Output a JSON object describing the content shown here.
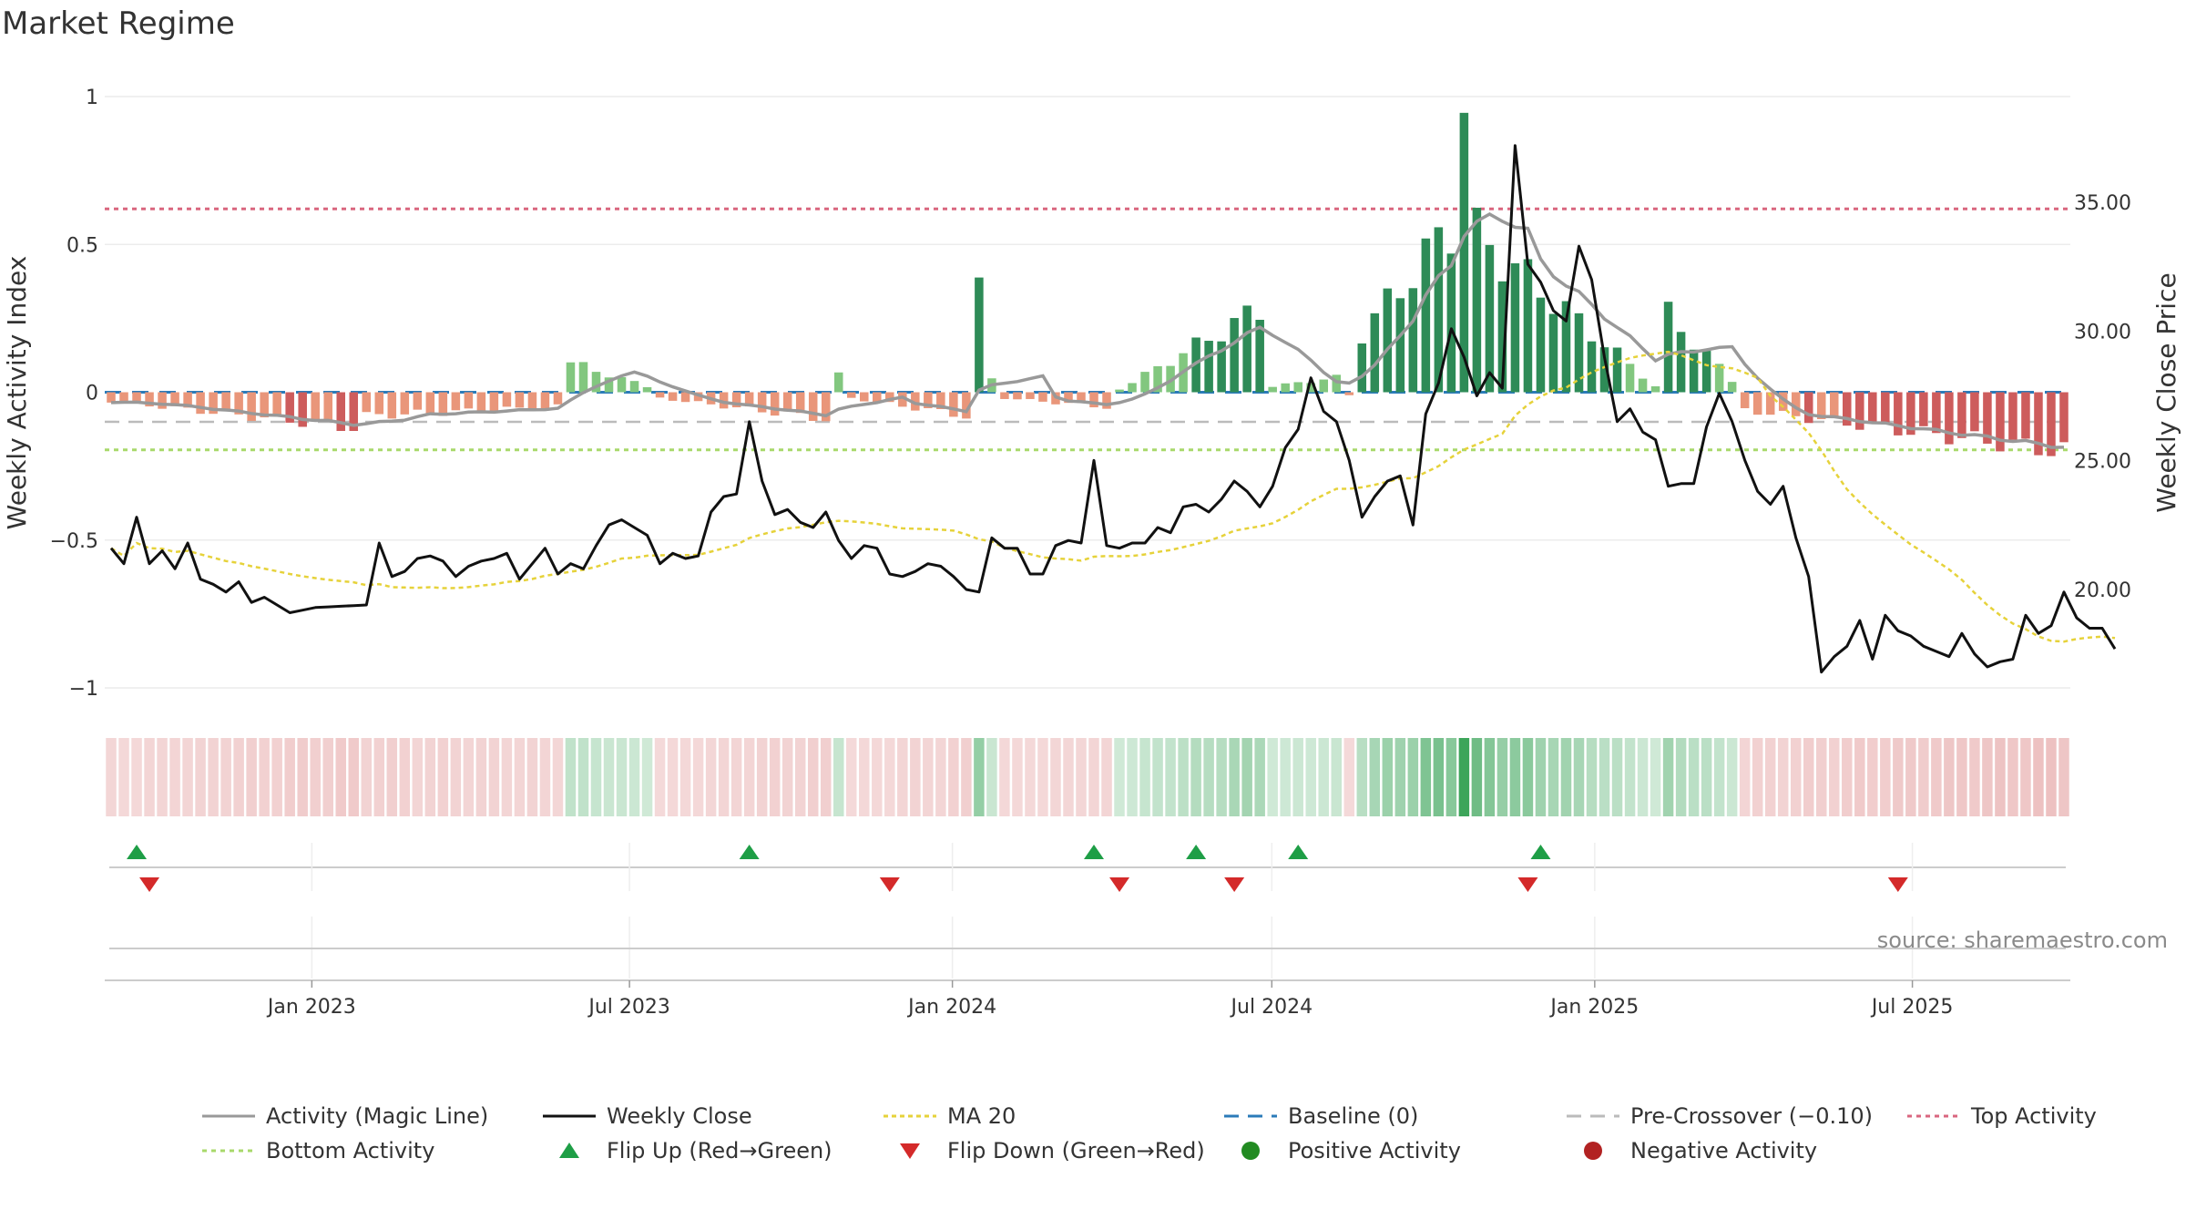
{
  "page": {
    "title": "Market Regime"
  },
  "chart_data": {
    "type": "bar",
    "title": "Market Regime",
    "left_axis": {
      "label": "Weekly Activity Index",
      "ylim": [
        -1.1,
        1.1
      ],
      "ticks": [
        1,
        0.5,
        0,
        -0.5,
        -1
      ],
      "tick_labels": [
        "1",
        "0.5",
        "0",
        "−0.5",
        "−1"
      ]
    },
    "right_axis": {
      "label": "Weekly Close Price",
      "ylim": [
        16.0,
        37.2
      ],
      "ticks": [
        35,
        30,
        25,
        20
      ],
      "tick_labels": [
        "35.00",
        "30.00",
        "25.00",
        "20.00"
      ]
    },
    "x_axis": {
      "start": "2022-09-05",
      "end": "2025-09-29",
      "ticks": [
        {
          "date": "2023-01-01",
          "label": "Jan 2023"
        },
        {
          "date": "2023-07-01",
          "label": "Jul 2023"
        },
        {
          "date": "2024-01-01",
          "label": "Jan 2024"
        },
        {
          "date": "2024-07-01",
          "label": "Jul 2024"
        },
        {
          "date": "2025-01-01",
          "label": "Jan 2025"
        },
        {
          "date": "2025-07-01",
          "label": "Jul 2025"
        }
      ]
    },
    "reference_lines": {
      "baseline": 0,
      "pre_crossover": -0.1,
      "top_activity": 0.62,
      "bottom_activity": -0.195
    },
    "activity_segments": [
      {
        "weeks": 20,
        "start": -0.03,
        "end": -0.12
      },
      {
        "weeks": 16,
        "start": -0.08,
        "end": -0.05
      },
      {
        "weeks": 7,
        "start": 0.1,
        "end": 0.02
      },
      {
        "weeks": 14,
        "start": -0.02,
        "end": -0.09
      },
      {
        "weeks": 1,
        "start": 0.08,
        "end": 0.08
      },
      {
        "weeks": 10,
        "start": -0.02,
        "end": -0.08
      },
      {
        "weeks": 2,
        "start": 0.46,
        "end": 0.05
      },
      {
        "weeks": 9,
        "start": -0.02,
        "end": -0.05
      },
      {
        "weeks": 12,
        "start": 0.01,
        "end": 0.28
      },
      {
        "weeks": 6,
        "start": 0.02,
        "end": 0.05
      },
      {
        "weeks": 1,
        "start": -0.01,
        "end": -0.01
      },
      {
        "weeks": 8,
        "start": 0.2,
        "end": 0.56
      },
      {
        "weeks": 1,
        "start": 1.0,
        "end": 1.0
      },
      {
        "weeks": 15,
        "start": 0.53,
        "end": 0.02
      },
      {
        "weeks": 6,
        "start": 0.26,
        "end": 0.04
      },
      {
        "weeks": 26,
        "start": -0.06,
        "end": -0.2
      }
    ],
    "series": [
      {
        "name": "Activity (Magic Line)",
        "color": "#999999",
        "values_source": "smoothed activity index"
      },
      {
        "name": "Weekly Close",
        "color": "#111111",
        "anchors": [
          [
            0,
            21.6
          ],
          [
            1,
            21.0
          ],
          [
            2,
            22.8
          ],
          [
            3,
            21.0
          ],
          [
            4,
            21.5
          ],
          [
            5,
            20.8
          ],
          [
            6,
            21.8
          ],
          [
            7,
            20.4
          ],
          [
            8,
            20.2
          ],
          [
            9,
            19.9
          ],
          [
            10,
            20.3
          ],
          [
            11,
            19.5
          ],
          [
            12,
            19.7
          ],
          [
            13,
            19.4
          ],
          [
            14,
            19.1
          ],
          [
            16,
            19.3
          ],
          [
            20,
            19.4
          ],
          [
            21,
            21.8
          ],
          [
            22,
            20.5
          ],
          [
            23,
            20.7
          ],
          [
            24,
            21.2
          ],
          [
            25,
            21.3
          ],
          [
            26,
            21.1
          ],
          [
            27,
            20.5
          ],
          [
            28,
            20.9
          ],
          [
            29,
            21.1
          ],
          [
            30,
            21.2
          ],
          [
            31,
            21.4
          ],
          [
            32,
            20.4
          ],
          [
            33,
            21.0
          ],
          [
            34,
            21.6
          ],
          [
            35,
            20.6
          ],
          [
            36,
            21.0
          ],
          [
            37,
            20.8
          ],
          [
            38,
            21.7
          ],
          [
            39,
            22.5
          ],
          [
            40,
            22.7
          ],
          [
            41,
            22.4
          ],
          [
            42,
            22.1
          ],
          [
            43,
            21.0
          ],
          [
            44,
            21.4
          ],
          [
            45,
            21.2
          ],
          [
            46,
            21.3
          ],
          [
            47,
            23.0
          ],
          [
            48,
            23.6
          ],
          [
            49,
            23.7
          ],
          [
            50,
            26.5
          ],
          [
            51,
            24.2
          ],
          [
            52,
            22.9
          ],
          [
            53,
            23.1
          ],
          [
            54,
            22.6
          ],
          [
            55,
            22.4
          ],
          [
            56,
            23.0
          ],
          [
            57,
            21.9
          ],
          [
            58,
            21.2
          ],
          [
            59,
            21.7
          ],
          [
            60,
            21.6
          ],
          [
            61,
            20.6
          ],
          [
            62,
            20.5
          ],
          [
            63,
            20.7
          ],
          [
            64,
            21.0
          ],
          [
            65,
            20.9
          ],
          [
            66,
            20.5
          ],
          [
            67,
            20.0
          ],
          [
            68,
            19.9
          ],
          [
            69,
            22.0
          ],
          [
            70,
            21.6
          ],
          [
            71,
            21.6
          ],
          [
            72,
            20.6
          ],
          [
            73,
            20.6
          ],
          [
            74,
            21.7
          ],
          [
            75,
            21.9
          ],
          [
            76,
            21.8
          ],
          [
            77,
            25.0
          ],
          [
            78,
            21.7
          ],
          [
            79,
            21.6
          ],
          [
            80,
            21.8
          ],
          [
            81,
            21.8
          ],
          [
            82,
            22.4
          ],
          [
            83,
            22.2
          ],
          [
            84,
            23.2
          ],
          [
            85,
            23.3
          ],
          [
            86,
            23.0
          ],
          [
            87,
            23.5
          ],
          [
            88,
            24.2
          ],
          [
            89,
            23.8
          ],
          [
            90,
            23.2
          ],
          [
            91,
            24.0
          ],
          [
            92,
            25.5
          ],
          [
            93,
            26.2
          ],
          [
            94,
            28.2
          ],
          [
            95,
            26.9
          ],
          [
            96,
            26.5
          ],
          [
            97,
            25.0
          ],
          [
            98,
            22.8
          ],
          [
            99,
            23.6
          ],
          [
            100,
            24.2
          ],
          [
            101,
            24.4
          ],
          [
            102,
            22.5
          ],
          [
            103,
            26.8
          ],
          [
            104,
            28.0
          ],
          [
            105,
            30.1
          ],
          [
            106,
            29.0
          ],
          [
            107,
            27.5
          ],
          [
            108,
            28.4
          ],
          [
            109,
            27.8
          ],
          [
            110,
            37.2
          ],
          [
            111,
            32.6
          ],
          [
            112,
            31.9
          ],
          [
            113,
            30.8
          ],
          [
            114,
            30.4
          ],
          [
            115,
            33.3
          ],
          [
            116,
            32.0
          ],
          [
            117,
            29.0
          ],
          [
            118,
            26.5
          ],
          [
            119,
            27.0
          ],
          [
            120,
            26.1
          ],
          [
            121,
            25.8
          ],
          [
            122,
            24.0
          ],
          [
            123,
            24.1
          ],
          [
            124,
            24.1
          ],
          [
            125,
            26.3
          ],
          [
            126,
            27.6
          ],
          [
            127,
            26.5
          ],
          [
            128,
            25.0
          ],
          [
            129,
            23.8
          ],
          [
            130,
            23.3
          ],
          [
            131,
            24.0
          ],
          [
            132,
            22.0
          ],
          [
            133,
            20.5
          ],
          [
            134,
            16.8
          ],
          [
            135,
            17.4
          ],
          [
            136,
            17.8
          ],
          [
            137,
            18.8
          ],
          [
            138,
            17.3
          ],
          [
            139,
            19.0
          ],
          [
            140,
            18.4
          ],
          [
            141,
            18.2
          ],
          [
            142,
            17.8
          ],
          [
            143,
            17.6
          ],
          [
            144,
            17.4
          ],
          [
            145,
            18.3
          ],
          [
            146,
            17.5
          ],
          [
            147,
            17.0
          ],
          [
            148,
            17.2
          ],
          [
            149,
            17.3
          ],
          [
            150,
            19.0
          ],
          [
            151,
            18.3
          ],
          [
            152,
            18.6
          ],
          [
            153,
            19.9
          ],
          [
            154,
            18.9
          ],
          [
            155,
            18.5
          ],
          [
            156,
            18.5
          ],
          [
            157,
            17.7
          ]
        ]
      },
      {
        "name": "MA 20",
        "color": "#e6d23a",
        "values_source": "20-week moving average of Weekly Close"
      }
    ],
    "flip_up_weeks": [
      2,
      50,
      77,
      85,
      93,
      112
    ],
    "flip_down_weeks": [
      3,
      61,
      79,
      88,
      111,
      140
    ],
    "regime_strip_colors": {
      "positive": "#2e9e4e",
      "negative": "#cf5b5b"
    },
    "source": "source: sharemaestro.com",
    "legend": [
      {
        "key": "activity",
        "label": "Activity (Magic Line)"
      },
      {
        "key": "close",
        "label": "Weekly Close"
      },
      {
        "key": "ma20",
        "label": "MA 20"
      },
      {
        "key": "baseline",
        "label": "Baseline (0)"
      },
      {
        "key": "precross",
        "label": "Pre-Crossover (−0.10)"
      },
      {
        "key": "top",
        "label": "Top Activity"
      },
      {
        "key": "bottom",
        "label": "Bottom Activity"
      },
      {
        "key": "flipup",
        "label": "Flip Up (Red→Green)"
      },
      {
        "key": "flipdown",
        "label": "Flip Down (Green→Red)"
      },
      {
        "key": "pos",
        "label": "Positive Activity"
      },
      {
        "key": "neg",
        "label": "Negative Activity"
      }
    ],
    "colors": {
      "pos_strong": "#2e8b57",
      "pos_light": "#82c77f",
      "neg_strong": "#cd5c5c",
      "neg_light": "#e9967a",
      "baseline": "#2b7bb9",
      "pre_crossover": "#bbbbbb",
      "top": "#d9667f",
      "bottom": "#a8d96b",
      "flip_up": "#1e9e46",
      "flip_down": "#d42a2a",
      "pos_dot": "#228b22",
      "neg_dot": "#b22222"
    }
  }
}
